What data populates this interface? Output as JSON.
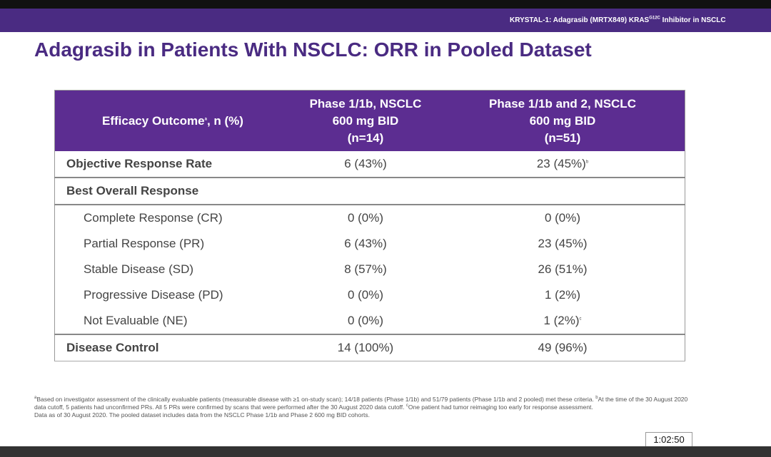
{
  "header": {
    "text": "KRYSTAL-1: Adagrasib (MRTX849) KRAS",
    "sup": "G12C",
    "text_after": " Inhibitor in NSCLC"
  },
  "title": "Adagrasib in Patients With NSCLC: ORR in Pooled Dataset",
  "table": {
    "header": {
      "col0": "Efficacy Outcome",
      "col0_sup": "a",
      "col0_after": ", n (%)",
      "col1": [
        "Phase 1/1b, NSCLC",
        "600 mg BID",
        "(n=14)"
      ],
      "col2": [
        "Phase 1/1b and 2, NSCLC",
        "600 mg  BID",
        "(n=51)"
      ]
    },
    "rows": [
      {
        "label": "Objective Response Rate",
        "col1": "6 (43%)",
        "col2": "23 (45%)",
        "col2_sup": "b"
      },
      {
        "label": "Best Overall Response"
      },
      {
        "label": "Complete Response (CR)",
        "col1": "0 (0%)",
        "col2": "0 (0%)"
      },
      {
        "label": "Partial Response (PR)",
        "col1": "6 (43%)",
        "col2": "23 (45%)"
      },
      {
        "label": "Stable Disease (SD)",
        "col1": "8 (57%)",
        "col2": "26 (51%)"
      },
      {
        "label": "Progressive Disease (PD)",
        "col1": "0 (0%)",
        "col2": "1 (2%)"
      },
      {
        "label": "Not Evaluable (NE)",
        "col1": "0 (0%)",
        "col2": "1 (2%)",
        "col2_sup": "c"
      },
      {
        "label": "Disease Control",
        "col1": "14 (100%)",
        "col2": "49 (96%)"
      }
    ]
  },
  "footnotes": [
    {
      "mark": "a",
      "text": "Based on investigator assessment of the clinically evaluable patients (measurable disease with ≥1 on-study scan); 14/18 patients (Phase 1/1b) and 51/79 patients (Phase 1/1b and 2 pooled) met these criteria. "
    },
    {
      "mark": "b",
      "text": "At the time of the 30 August 2020 data cutoff, 5 patients had unconfirmed PRs. All 5 PRs were confirmed by scans that were performed after the 30 August 2020 data cutoff. "
    },
    {
      "mark": "c",
      "text": "One patient had tumor reimaging too early for response assessment."
    }
  ],
  "data_note": "Data as of 30 August 2020. The pooled dataset includes data from the NSCLC Phase 1/1b and Phase 2 600 mg BID cohorts.",
  "player": {
    "timestamp": "1:02:50"
  }
}
